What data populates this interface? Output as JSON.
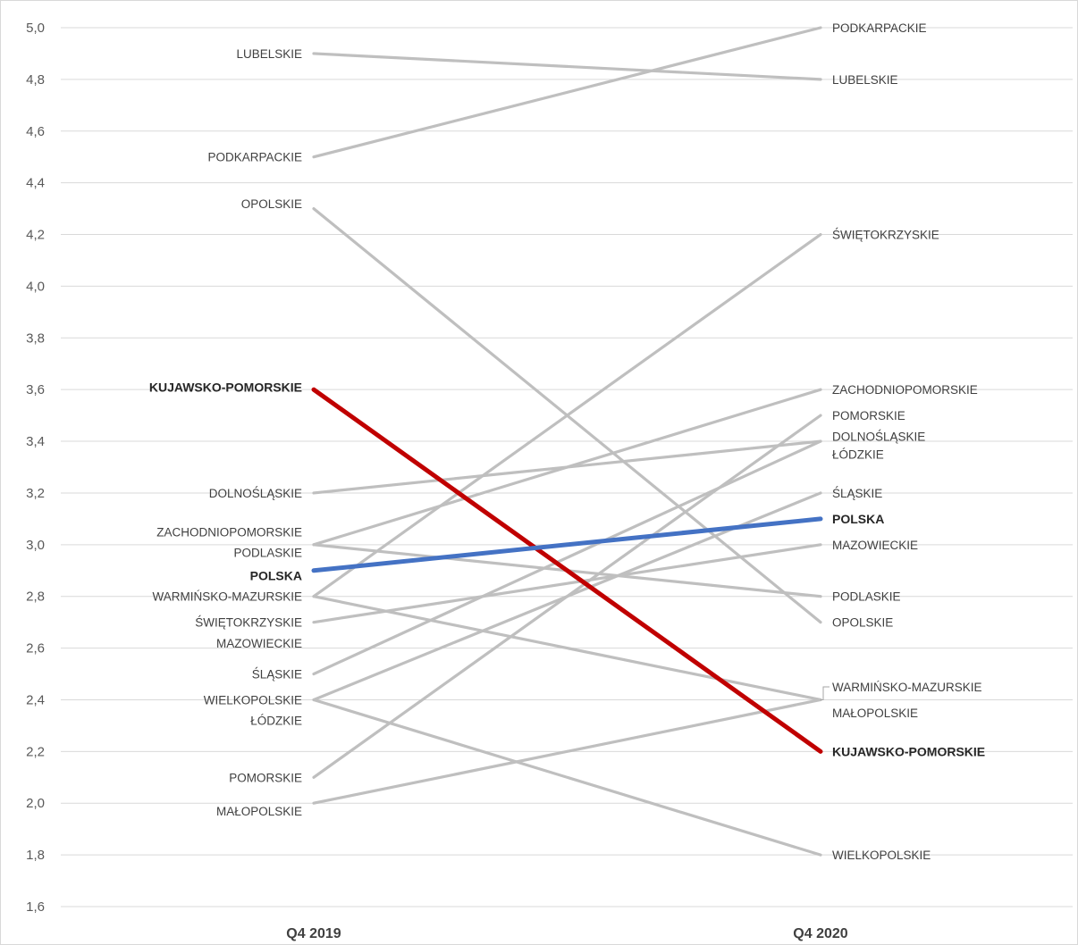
{
  "chart_data": {
    "type": "line",
    "categories": [
      "Q4 2019",
      "Q4 2020"
    ],
    "ylim": [
      1.6,
      5.0
    ],
    "yticks": [
      "5,0",
      "4,8",
      "4,6",
      "4,4",
      "4,2",
      "4,0",
      "3,8",
      "3,6",
      "3,4",
      "3,2",
      "3,0",
      "2,8",
      "2,6",
      "2,4",
      "2,2",
      "2,0",
      "1,8",
      "1,6"
    ],
    "grid": true,
    "highlight_colors": {
      "KUJAWSKO-POMORSKIE": "#c00000",
      "POLSKA": "#4472c4"
    },
    "base_color": "#bfbfbf",
    "series": [
      {
        "name": "LUBELSKIE",
        "values": [
          4.9,
          4.8
        ]
      },
      {
        "name": "PODKARPACKIE",
        "values": [
          4.5,
          5.0
        ]
      },
      {
        "name": "OPOLSKIE",
        "values": [
          4.3,
          2.7
        ]
      },
      {
        "name": "DOLNOŚLĄSKIE",
        "values": [
          3.2,
          3.4
        ]
      },
      {
        "name": "ZACHODNIOPOMORSKIE",
        "values": [
          3.0,
          3.6
        ]
      },
      {
        "name": "PODLASKIE",
        "values": [
          3.0,
          2.8
        ]
      },
      {
        "name": "WARMIŃSKO-MAZURSKIE",
        "values": [
          2.8,
          2.4
        ]
      },
      {
        "name": "ŚWIĘTOKRZYSKIE",
        "values": [
          2.8,
          4.2
        ]
      },
      {
        "name": "MAZOWIECKIE",
        "values": [
          2.7,
          3.0
        ]
      },
      {
        "name": "ŚLĄSKIE",
        "values": [
          2.5,
          3.4
        ]
      },
      {
        "name": "WIELKOPOLSKIE",
        "values": [
          2.4,
          1.8
        ]
      },
      {
        "name": "ŁÓDZKIE",
        "values": [
          2.4,
          3.2
        ]
      },
      {
        "name": "POMORSKIE",
        "values": [
          2.1,
          3.5
        ]
      },
      {
        "name": "MAŁOPOLSKIE",
        "values": [
          2.0,
          2.4
        ]
      },
      {
        "name": "KUJAWSKO-POMORSKIE",
        "values": [
          3.6,
          2.2
        ]
      },
      {
        "name": "POLSKA",
        "values": [
          2.9,
          3.1
        ]
      }
    ],
    "left_labels": [
      {
        "text": "LUBELSKIE",
        "at": 4.9
      },
      {
        "text": "PODKARPACKIE",
        "at": 4.5
      },
      {
        "text": "OPOLSKIE",
        "at": 4.32
      },
      {
        "text": "KUJAWSKO-POMORSKIE",
        "at": 3.61
      },
      {
        "text": "DOLNOŚLĄSKIE",
        "at": 3.2
      },
      {
        "text": "ZACHODNIOPOMORSKIE",
        "at": 3.05
      },
      {
        "text": "PODLASKIE",
        "at": 2.97
      },
      {
        "text": "POLSKA",
        "at": 2.88
      },
      {
        "text": "WARMIŃSKO-MAZURSKIE",
        "at": 2.8
      },
      {
        "text": "ŚWIĘTOKRZYSKIE",
        "at": 2.7
      },
      {
        "text": "MAZOWIECKIE",
        "at": 2.62
      },
      {
        "text": "ŚLĄSKIE",
        "at": 2.5
      },
      {
        "text": "WIELKOPOLSKIE",
        "at": 2.4
      },
      {
        "text": "ŁÓDZKIE",
        "at": 2.32
      },
      {
        "text": "POMORSKIE",
        "at": 2.1
      },
      {
        "text": "MAŁOPOLSKIE",
        "at": 1.97
      }
    ],
    "right_labels": [
      {
        "text": "PODKARPACKIE",
        "at": 5.0
      },
      {
        "text": "LUBELSKIE",
        "at": 4.8
      },
      {
        "text": "ŚWIĘTOKRZYSKIE",
        "at": 4.2
      },
      {
        "text": "ZACHODNIOPOMORSKIE",
        "at": 3.6
      },
      {
        "text": "POMORSKIE",
        "at": 3.5
      },
      {
        "text": "DOLNOŚLĄSKIE",
        "at": 3.42
      },
      {
        "text": "ŁÓDZKIE",
        "at": 3.35
      },
      {
        "text": "ŚLĄSKIE",
        "at": 3.2
      },
      {
        "text": "POLSKA",
        "at": 3.1
      },
      {
        "text": "MAZOWIECKIE",
        "at": 3.0
      },
      {
        "text": "PODLASKIE",
        "at": 2.8
      },
      {
        "text": "OPOLSKIE",
        "at": 2.7
      },
      {
        "text": "WARMIŃSKO-MAZURSKIE",
        "at": 2.45
      },
      {
        "text": "MAŁOPOLSKIE",
        "at": 2.35
      },
      {
        "text": "KUJAWSKO-POMORSKIE",
        "at": 2.2
      },
      {
        "text": "WIELKOPOLSKIE",
        "at": 1.8
      }
    ]
  }
}
